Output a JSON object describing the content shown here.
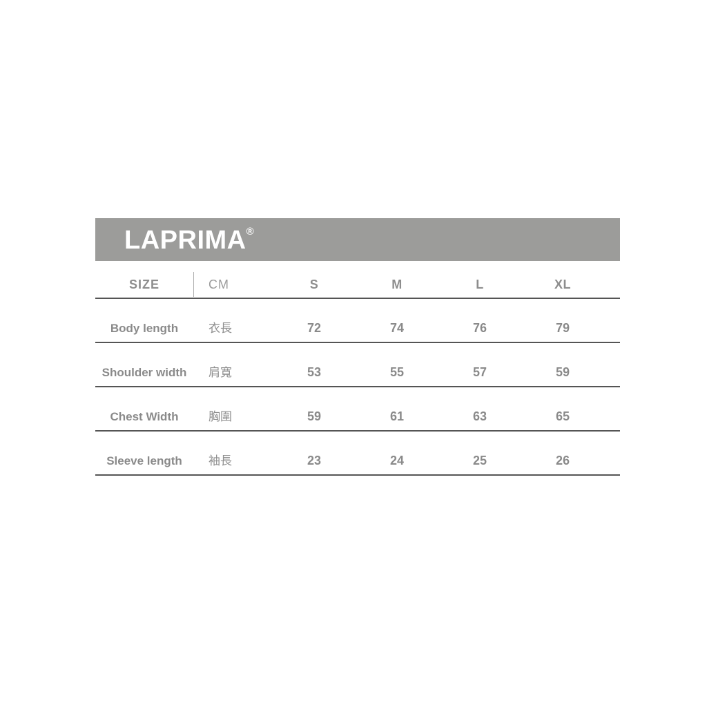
{
  "brand": {
    "name": "LAPRIMA",
    "registered_mark": "®"
  },
  "table": {
    "header": {
      "size_label": "SIZE",
      "unit_label": "CM",
      "sizes": [
        "S",
        "M",
        "L",
        "XL"
      ]
    },
    "rows": [
      {
        "label_en": "Body length",
        "label_zh": "衣長",
        "values": [
          "72",
          "74",
          "76",
          "79"
        ]
      },
      {
        "label_en": "Shoulder width",
        "label_zh": "肩寬",
        "values": [
          "53",
          "55",
          "57",
          "59"
        ]
      },
      {
        "label_en": "Chest Width",
        "label_zh": "胸圍",
        "values": [
          "59",
          "61",
          "63",
          "65"
        ]
      },
      {
        "label_en": "Sleeve length",
        "label_zh": "袖長",
        "values": [
          "23",
          "24",
          "25",
          "26"
        ]
      }
    ]
  },
  "colors": {
    "banner_background": "#9c9c9a",
    "banner_text": "#ffffff",
    "table_text": "#8a8a8a",
    "rule_line": "#555555",
    "page_background": "#ffffff"
  }
}
